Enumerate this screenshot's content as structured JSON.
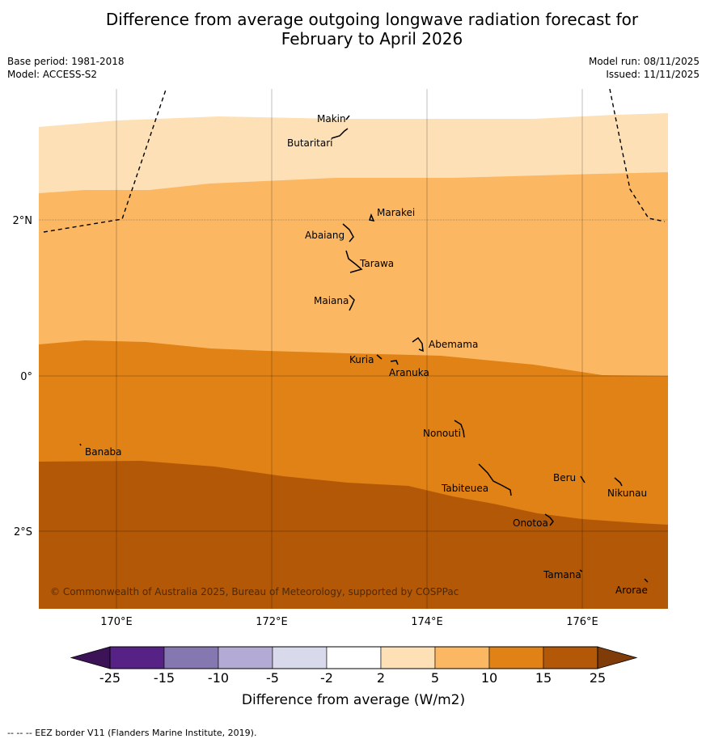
{
  "title_line1": "Difference from average outgoing longwave radiation forecast for",
  "title_line2": "February to April 2026",
  "base_period": "Base period: 1981-2018",
  "model": "Model: ACCESS-S2",
  "model_run": "Model run: 08/11/2025",
  "issued": "Issued: 11/11/2025",
  "axes": {
    "lat_labels": [
      "2°N",
      "0°",
      "2°S"
    ],
    "lon_labels": [
      "170°E",
      "172°E",
      "174°E",
      "176°E"
    ]
  },
  "places": [
    "Makin",
    "Butaritari",
    "Marakei",
    "Abaiang",
    "Tarawa",
    "Maiana",
    "Abemama",
    "Kuria",
    "Aranuka",
    "Nonouti",
    "Banaba",
    "Beru",
    "Tabiteuea",
    "Nikunau",
    "Onotoa",
    "Tamana",
    "Arorae"
  ],
  "credit": "© Commonwealth of Australia 2025, Bureau of Meteorology, supported by COSPPac",
  "colorbar": {
    "ticks": [
      "-25",
      "-15",
      "-10",
      "-5",
      "-2",
      "2",
      "5",
      "10",
      "15",
      "25"
    ],
    "label": "Difference from average (W/m2)",
    "colors": [
      "#3d1358",
      "#572286",
      "#8577b0",
      "#b3abd5",
      "#d9d9ec",
      "#ffffff",
      "#fee0b6",
      "#fbb762",
      "#e08215",
      "#b35806",
      "#7f3b08"
    ]
  },
  "footnote": "--  --  -- EEZ border V11 (Flanders Marine Institute, 2019)."
}
